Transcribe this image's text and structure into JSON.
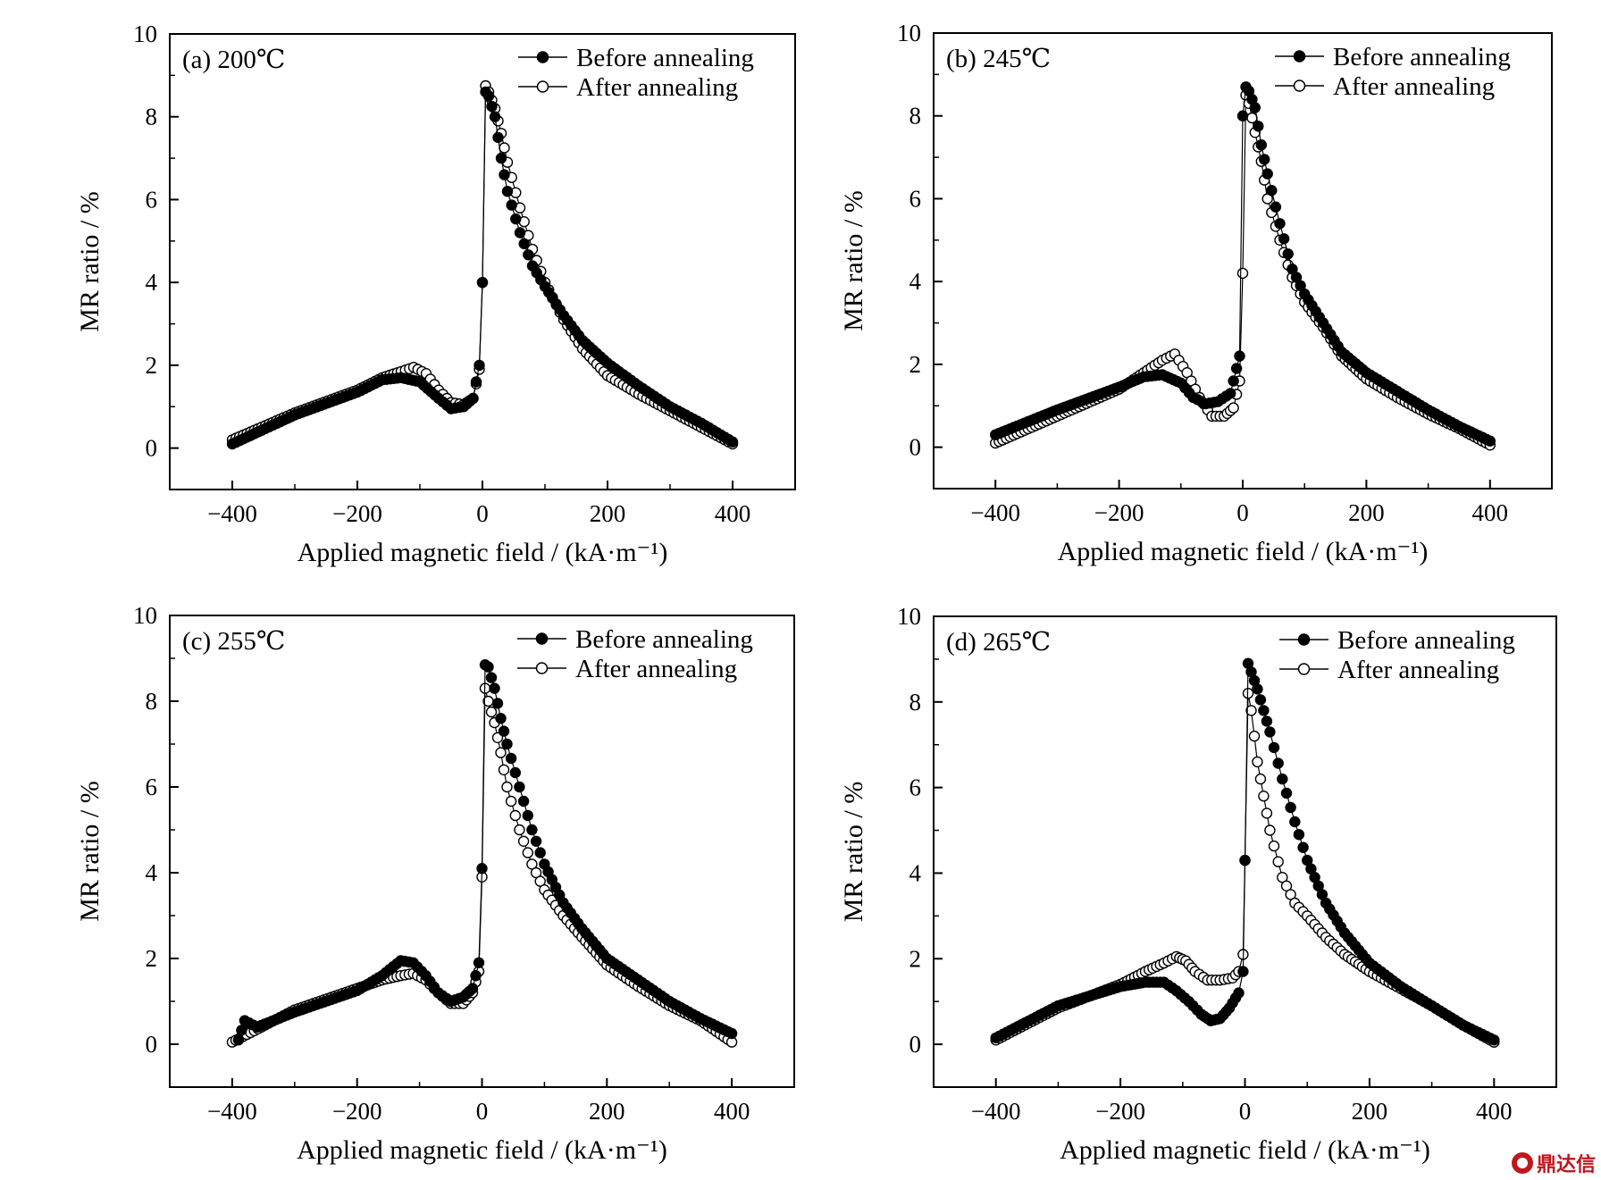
{
  "watermark": {
    "text": "鼎达信",
    "color": "#c0161d"
  },
  "chart_data": [
    {
      "type": "scatter",
      "panel_label": "(a) 200℃",
      "xlabel": "Applied magnetic field / (kA·m⁻¹)",
      "ylabel": "MR ratio / %",
      "xlim": [
        -500,
        500
      ],
      "ylim": [
        -1,
        10
      ],
      "xticks": [
        "−400",
        "−200",
        "0",
        "200",
        "400"
      ],
      "yticks": [
        "0",
        "2",
        "4",
        "6",
        "8",
        "10"
      ],
      "legend": "top-right",
      "grid": false,
      "series": [
        {
          "name": "Before annealing",
          "marker": "filled-circle",
          "color": "#000000",
          "x": [
            -400,
            -300,
            -200,
            -160,
            -130,
            -100,
            -70,
            -50,
            -30,
            -15,
            -5,
            0,
            5,
            10,
            20,
            30,
            40,
            60,
            80,
            100,
            130,
            160,
            200,
            250,
            300,
            350,
            400
          ],
          "y": [
            0.1,
            0.8,
            1.35,
            1.65,
            1.7,
            1.6,
            1.2,
            0.95,
            1.0,
            1.2,
            2.0,
            4.0,
            8.6,
            8.5,
            8.0,
            7.0,
            6.2,
            5.2,
            4.4,
            3.9,
            3.2,
            2.6,
            2.05,
            1.5,
            1.0,
            0.6,
            0.15
          ]
        },
        {
          "name": "After annealing",
          "marker": "open-circle",
          "color": "#000000",
          "x": [
            -400,
            -300,
            -200,
            -160,
            -130,
            -110,
            -90,
            -70,
            -50,
            -30,
            -15,
            -5,
            0,
            5,
            10,
            20,
            30,
            40,
            60,
            80,
            100,
            130,
            160,
            200,
            250,
            300,
            350,
            400
          ],
          "y": [
            0.2,
            0.85,
            1.4,
            1.7,
            1.85,
            1.95,
            1.8,
            1.4,
            1.1,
            1.05,
            1.2,
            1.9,
            4.0,
            8.75,
            8.6,
            8.2,
            7.6,
            6.9,
            5.8,
            4.8,
            4.0,
            3.1,
            2.4,
            1.75,
            1.3,
            0.9,
            0.5,
            0.1
          ]
        }
      ]
    },
    {
      "type": "scatter",
      "panel_label": "(b) 245℃",
      "xlabel": "Applied magnetic field / (kA·m⁻¹)",
      "ylabel": "MR ratio / %",
      "xlim": [
        -500,
        500
      ],
      "ylim": [
        -1,
        10
      ],
      "xticks": [
        "−400",
        "−200",
        "0",
        "200",
        "400"
      ],
      "yticks": [
        "0",
        "2",
        "4",
        "6",
        "8",
        "10"
      ],
      "legend": "top-right",
      "grid": false,
      "series": [
        {
          "name": "Before annealing",
          "marker": "filled-circle",
          "color": "#000000",
          "x": [
            -400,
            -300,
            -200,
            -160,
            -130,
            -100,
            -80,
            -60,
            -40,
            -20,
            -5,
            0,
            5,
            10,
            20,
            30,
            40,
            60,
            80,
            100,
            130,
            160,
            200,
            250,
            300,
            350,
            400
          ],
          "y": [
            0.3,
            0.9,
            1.45,
            1.7,
            1.75,
            1.55,
            1.2,
            1.05,
            1.1,
            1.3,
            2.2,
            8.0,
            8.7,
            8.6,
            8.2,
            7.3,
            6.6,
            5.4,
            4.3,
            3.7,
            3.0,
            2.3,
            1.8,
            1.35,
            0.9,
            0.5,
            0.15
          ]
        },
        {
          "name": "After annealing",
          "marker": "open-circle",
          "color": "#000000",
          "x": [
            -400,
            -300,
            -200,
            -160,
            -130,
            -110,
            -90,
            -70,
            -50,
            -30,
            -15,
            -5,
            0,
            5,
            10,
            20,
            30,
            40,
            60,
            80,
            100,
            130,
            160,
            200,
            250,
            300,
            350,
            400
          ],
          "y": [
            0.1,
            0.75,
            1.4,
            1.8,
            2.1,
            2.25,
            1.8,
            1.2,
            0.75,
            0.75,
            0.95,
            1.6,
            4.2,
            8.5,
            8.3,
            7.6,
            6.9,
            6.0,
            5.0,
            4.1,
            3.5,
            2.9,
            2.2,
            1.65,
            1.2,
            0.8,
            0.45,
            0.05
          ]
        }
      ]
    },
    {
      "type": "scatter",
      "panel_label": "(c) 255℃",
      "xlabel": "Applied magnetic field / (kA·m⁻¹)",
      "ylabel": "MR ratio / %",
      "xlim": [
        -500,
        500
      ],
      "ylim": [
        -1,
        10
      ],
      "xticks": [
        "−400",
        "−200",
        "0",
        "200",
        "400"
      ],
      "yticks": [
        "0",
        "2",
        "4",
        "6",
        "8",
        "10"
      ],
      "legend": "top-right",
      "grid": false,
      "series": [
        {
          "name": "Before annealing",
          "marker": "filled-circle",
          "color": "#000000",
          "x": [
            -390,
            -380,
            -360,
            -300,
            -200,
            -160,
            -130,
            -110,
            -90,
            -70,
            -50,
            -30,
            -15,
            -5,
            0,
            5,
            10,
            20,
            30,
            40,
            60,
            80,
            100,
            130,
            160,
            200,
            250,
            300,
            350,
            400
          ],
          "y": [
            0.1,
            0.55,
            0.4,
            0.75,
            1.25,
            1.6,
            1.95,
            1.9,
            1.6,
            1.2,
            1.0,
            1.1,
            1.3,
            1.9,
            4.1,
            8.85,
            8.8,
            8.3,
            7.6,
            7.0,
            6.0,
            5.0,
            4.2,
            3.3,
            2.7,
            2.0,
            1.5,
            1.0,
            0.6,
            0.25
          ]
        },
        {
          "name": "After annealing",
          "marker": "open-circle",
          "color": "#000000",
          "x": [
            -400,
            -300,
            -200,
            -160,
            -130,
            -110,
            -90,
            -70,
            -50,
            -30,
            -15,
            -5,
            0,
            5,
            10,
            20,
            30,
            40,
            60,
            80,
            100,
            130,
            160,
            200,
            250,
            300,
            350,
            400
          ],
          "y": [
            0.05,
            0.8,
            1.3,
            1.5,
            1.6,
            1.65,
            1.5,
            1.2,
            0.95,
            0.95,
            1.2,
            1.7,
            3.9,
            8.3,
            8.0,
            7.5,
            6.8,
            6.0,
            5.0,
            4.2,
            3.6,
            3.0,
            2.5,
            1.85,
            1.35,
            0.9,
            0.55,
            0.05
          ]
        }
      ]
    },
    {
      "type": "scatter",
      "panel_label": "(d) 265℃",
      "xlabel": "Applied magnetic field / (kA·m⁻¹)",
      "ylabel": "MR ratio / %",
      "xlim": [
        -500,
        500
      ],
      "ylim": [
        -1,
        10
      ],
      "xticks": [
        "−400",
        "−200",
        "0",
        "200",
        "400"
      ],
      "yticks": [
        "0",
        "2",
        "4",
        "6",
        "8",
        "10"
      ],
      "legend": "top-right",
      "grid": false,
      "series": [
        {
          "name": "Before annealing",
          "marker": "filled-circle",
          "color": "#000000",
          "x": [
            -400,
            -300,
            -200,
            -160,
            -130,
            -110,
            -90,
            -70,
            -55,
            -40,
            -25,
            -10,
            -3,
            0,
            5,
            10,
            20,
            30,
            40,
            60,
            80,
            100,
            130,
            160,
            200,
            250,
            300,
            350,
            400
          ],
          "y": [
            0.15,
            0.9,
            1.35,
            1.45,
            1.45,
            1.25,
            1.0,
            0.7,
            0.55,
            0.6,
            0.85,
            1.2,
            1.7,
            4.3,
            8.9,
            8.7,
            8.3,
            7.8,
            7.3,
            6.2,
            5.2,
            4.3,
            3.3,
            2.6,
            1.9,
            1.35,
            0.9,
            0.45,
            0.1
          ]
        },
        {
          "name": "After annealing",
          "marker": "open-circle",
          "color": "#000000",
          "x": [
            -400,
            -300,
            -200,
            -160,
            -130,
            -110,
            -95,
            -80,
            -60,
            -40,
            -20,
            -10,
            -3,
            0,
            5,
            10,
            20,
            30,
            40,
            60,
            80,
            100,
            130,
            160,
            200,
            250,
            300,
            350,
            400
          ],
          "y": [
            0.1,
            0.85,
            1.4,
            1.7,
            1.9,
            2.05,
            1.95,
            1.7,
            1.5,
            1.5,
            1.55,
            1.7,
            2.1,
            4.3,
            8.2,
            7.8,
            6.6,
            5.8,
            5.0,
            3.9,
            3.3,
            3.0,
            2.5,
            2.1,
            1.7,
            1.3,
            0.9,
            0.45,
            0.05
          ]
        }
      ]
    }
  ]
}
